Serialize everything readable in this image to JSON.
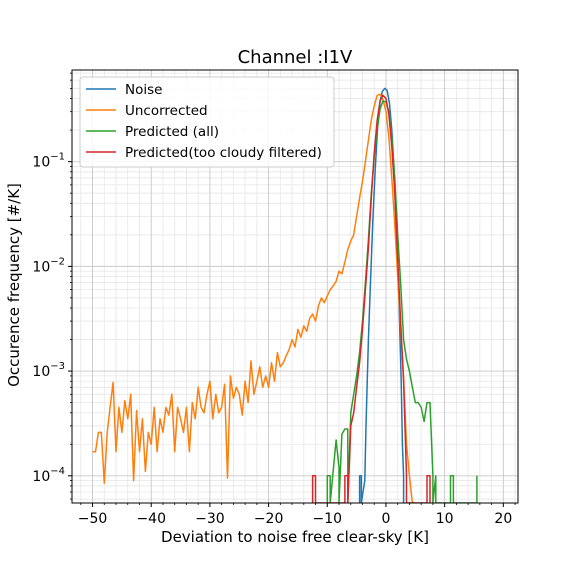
{
  "chart_data": {
    "type": "line",
    "title": "Channel :I1V",
    "xlabel": "Deviation to noise free clear-sky [K]",
    "ylabel": "Occurence frequency [#/K]",
    "xlim": [
      -53.5,
      22.5
    ],
    "ylim": [
      5.5e-05,
      0.75
    ],
    "yscale": "log",
    "grid": "major and minor",
    "legend_position": "top-left",
    "x_ticks": [
      -50,
      -40,
      -30,
      -20,
      -10,
      0,
      10,
      20
    ],
    "x_tick_labels": [
      "−50",
      "−40",
      "−30",
      "−20",
      "−10",
      "0",
      "10",
      "20"
    ],
    "y_ticks": [
      0.0001,
      0.001,
      0.01,
      0.1
    ],
    "y_tick_labels": [
      {
        "base": "10",
        "exp": "−4"
      },
      {
        "base": "10",
        "exp": "−3"
      },
      {
        "base": "10",
        "exp": "−2"
      },
      {
        "base": "10",
        "exp": "−1"
      }
    ],
    "series": [
      {
        "name": "Noise",
        "color": "#1f77b4",
        "x": [
          -4.5,
          -4.5,
          -4.2,
          -4.2,
          -3.6,
          -3.4,
          -3.0,
          -2.6,
          -2.2,
          -1.8,
          -1.4,
          -1.0,
          -0.6,
          -0.2,
          0.2,
          0.6,
          1.0,
          1.4,
          1.8,
          2.2,
          2.6,
          2.8,
          3.0,
          3.0
        ],
        "y": [
          5.5e-05,
          0.0001,
          0.0001,
          5.5e-05,
          9e-05,
          0.0003,
          0.002,
          0.008,
          0.03,
          0.09,
          0.22,
          0.38,
          0.47,
          0.5,
          0.48,
          0.36,
          0.2,
          0.08,
          0.02,
          0.005,
          0.0008,
          0.0002,
          0.0001,
          5.5e-05
        ]
      },
      {
        "name": "Uncorrected",
        "color": "#ff7f0e",
        "x": [
          -50,
          -49.5,
          -49,
          -48.5,
          -48,
          -47.5,
          -47,
          -46.5,
          -46,
          -45.5,
          -45,
          -44.5,
          -44,
          -43.5,
          -43,
          -42.5,
          -42,
          -41.5,
          -41,
          -40.5,
          -40,
          -39.5,
          -39,
          -38.5,
          -38,
          -37.5,
          -37,
          -36.5,
          -36,
          -35.5,
          -35,
          -34.5,
          -34,
          -33.5,
          -33,
          -32.5,
          -32,
          -31.5,
          -31,
          -30.5,
          -30,
          -29.5,
          -29,
          -28.5,
          -28,
          -27.5,
          -27,
          -26.5,
          -26,
          -25.5,
          -25,
          -24.5,
          -24,
          -23.5,
          -23,
          -22.5,
          -22,
          -21.5,
          -21,
          -20.5,
          -20,
          -19.5,
          -19,
          -18.5,
          -18,
          -17.5,
          -17,
          -16.5,
          -16,
          -15.5,
          -15,
          -14.5,
          -14,
          -13.5,
          -13,
          -12.5,
          -12,
          -11.5,
          -11,
          -10.5,
          -10,
          -9.5,
          -9,
          -8.5,
          -8,
          -7.5,
          -7,
          -6.5,
          -6,
          -5.5,
          -5,
          -4.5,
          -4,
          -3.5,
          -3,
          -2.5,
          -2,
          -1.5,
          -1,
          -0.5,
          0,
          0.5,
          1,
          1.5,
          2,
          2.5,
          3,
          3.5,
          4,
          4.5,
          5
        ],
        "y": [
          0.00017,
          0.00017,
          0.00026,
          0.00026,
          8.5e-05,
          0.00026,
          0.00045,
          0.00078,
          0.00017,
          0.00045,
          0.00026,
          0.00052,
          0.00035,
          0.0006,
          9e-05,
          0.00042,
          0.00017,
          0.00035,
          0.00011,
          0.00026,
          0.0002,
          0.00045,
          0.00017,
          0.00035,
          0.00026,
          0.00045,
          0.00038,
          0.0006,
          0.00017,
          0.00045,
          0.00035,
          0.00026,
          0.00045,
          0.00017,
          0.0005,
          0.00035,
          0.0007,
          0.00045,
          0.0004,
          0.0006,
          0.0008,
          0.00035,
          0.0006,
          0.0004,
          0.00045,
          0.00075,
          9.5e-05,
          0.0009,
          0.00055,
          0.0007,
          0.0006,
          0.00038,
          0.0008,
          0.0005,
          0.00125,
          0.0006,
          0.0008,
          0.0011,
          0.0007,
          0.0009,
          0.0007,
          0.0012,
          0.0008,
          0.0015,
          0.0011,
          0.0012,
          0.0014,
          0.0016,
          0.002,
          0.0017,
          0.0025,
          0.0021,
          0.0027,
          0.0024,
          0.0032,
          0.0035,
          0.003,
          0.0042,
          0.005,
          0.0045,
          0.0052,
          0.006,
          0.0065,
          0.0072,
          0.009,
          0.0085,
          0.011,
          0.0145,
          0.0175,
          0.02,
          0.03,
          0.045,
          0.065,
          0.1,
          0.16,
          0.25,
          0.34,
          0.43,
          0.44,
          0.39,
          0.3,
          0.17,
          0.07,
          0.025,
          0.008,
          0.0026,
          0.00085,
          0.0002,
          0.0001,
          5.5e-05,
          5.5e-05
        ]
      },
      {
        "name": "Predicted (all)",
        "color": "#2ca02c",
        "x": [
          -10,
          -10,
          -9.5,
          -9.5,
          -8.5,
          -8,
          -8,
          -7.5,
          -7,
          -6.5,
          -6.5,
          -6,
          -5.5,
          -5,
          -4.5,
          -4,
          -3.5,
          -3,
          -2.5,
          -2,
          -1.5,
          -1,
          -0.5,
          0,
          0.5,
          1,
          1.5,
          2,
          2.5,
          3,
          3.5,
          4,
          4.5,
          5,
          5.5,
          6,
          6.5,
          7,
          7.5,
          8,
          8,
          8.5,
          8.5,
          11,
          11,
          11.5,
          11.5,
          15.5,
          15.5
        ],
        "y": [
          5.5e-05,
          0.0001,
          0.0001,
          5.5e-05,
          0.00022,
          0.00012,
          5.5e-05,
          0.00025,
          0.00028,
          0.00028,
          5.5e-05,
          0.0004,
          0.0006,
          0.0009,
          0.0015,
          0.003,
          0.007,
          0.018,
          0.05,
          0.11,
          0.2,
          0.32,
          0.38,
          0.37,
          0.3,
          0.17,
          0.07,
          0.02,
          0.007,
          0.002,
          0.0013,
          0.001,
          0.0007,
          0.0005,
          0.0005,
          0.00045,
          0.00033,
          0.0005,
          0.0005,
          0.0001,
          5.5e-05,
          0.0001,
          5.5e-05,
          5.5e-05,
          0.0001,
          0.0001,
          5.5e-05,
          5.5e-05,
          0.0001
        ]
      },
      {
        "name": "Predicted(too cloudy filtered)",
        "color": "#d62728",
        "x": [
          -12.5,
          -12.5,
          -12,
          -12,
          -7,
          -7,
          -6.5,
          -6.5,
          -6,
          -5.5,
          -5,
          -4.5,
          -4,
          -3.5,
          -3,
          -2.5,
          -2,
          -1.5,
          -1,
          -0.5,
          0,
          0.5,
          1,
          1.5,
          2,
          2.5,
          3,
          3.5,
          3.5,
          7,
          7,
          7.5,
          7.5
        ],
        "y": [
          5.5e-05,
          0.0001,
          0.0001,
          5.5e-05,
          5.5e-05,
          0.0001,
          0.0001,
          5.5e-05,
          0.0003,
          0.0004,
          0.0007,
          0.0012,
          0.0025,
          0.006,
          0.015,
          0.045,
          0.12,
          0.25,
          0.38,
          0.43,
          0.4,
          0.28,
          0.14,
          0.05,
          0.012,
          0.003,
          0.0008,
          0.0001,
          5.5e-05,
          5.5e-05,
          0.0001,
          0.0001,
          5.5e-05
        ]
      }
    ]
  }
}
